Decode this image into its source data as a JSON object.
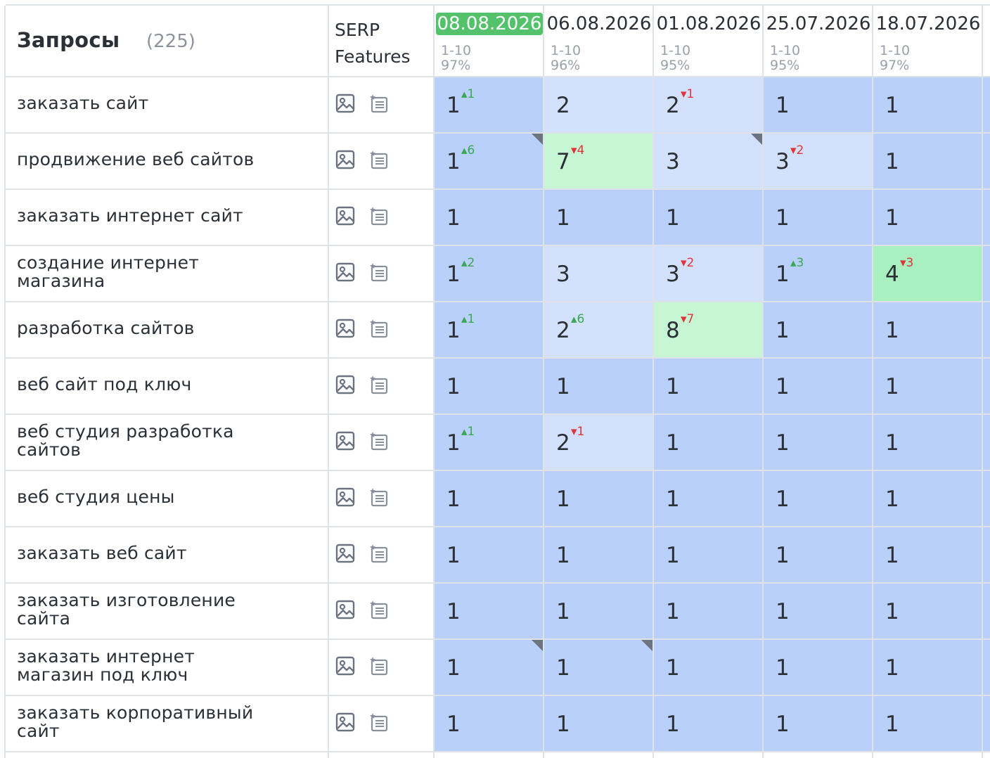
{
  "header": {
    "title": "Запросы",
    "count": "(225)",
    "serp_line1": "SERP",
    "serp_line2": "Features"
  },
  "dates": [
    {
      "date": "08.08.2026",
      "range": "1-10",
      "pct": "97%",
      "active": true
    },
    {
      "date": "06.08.2026",
      "range": "1-10",
      "pct": "96%",
      "active": false
    },
    {
      "date": "01.08.2026",
      "range": "1-10",
      "pct": "95%",
      "active": false
    },
    {
      "date": "25.07.2026",
      "range": "1-10",
      "pct": "95%",
      "active": false
    },
    {
      "date": "18.07.2026",
      "range": "1-10",
      "pct": "97%",
      "active": false
    }
  ],
  "icons": {
    "image": "image-icon",
    "snippet": "featured-snippet-icon"
  },
  "colors": {
    "pos1": "#b9d0fb",
    "pos2_3": "#d3e1fc",
    "pos4_5": "#a8f0bf",
    "pos6_10": "#c6f6d3",
    "active_date": "#53c26b",
    "up": "#3aa857",
    "down": "#e0353b"
  },
  "rows": [
    {
      "query": "заказать сайт",
      "cells": [
        {
          "v": "1",
          "chg": "1",
          "dir": "up"
        },
        {
          "v": "2"
        },
        {
          "v": "2",
          "chg": "1",
          "dir": "down"
        },
        {
          "v": "1"
        },
        {
          "v": "1"
        }
      ]
    },
    {
      "query": "продвижение веб сайтов",
      "cells": [
        {
          "v": "1",
          "chg": "6",
          "dir": "up",
          "note": true
        },
        {
          "v": "7",
          "chg": "4",
          "dir": "down"
        },
        {
          "v": "3",
          "note": true
        },
        {
          "v": "3",
          "chg": "2",
          "dir": "down"
        },
        {
          "v": "1"
        }
      ]
    },
    {
      "query": "заказать интернет сайт",
      "cells": [
        {
          "v": "1"
        },
        {
          "v": "1"
        },
        {
          "v": "1"
        },
        {
          "v": "1"
        },
        {
          "v": "1"
        }
      ]
    },
    {
      "query": "создание интернет магазина",
      "cells": [
        {
          "v": "1",
          "chg": "2",
          "dir": "up"
        },
        {
          "v": "3"
        },
        {
          "v": "3",
          "chg": "2",
          "dir": "down"
        },
        {
          "v": "1",
          "chg": "3",
          "dir": "up"
        },
        {
          "v": "4",
          "chg": "3",
          "dir": "down"
        }
      ]
    },
    {
      "query": "разработка сайтов",
      "cells": [
        {
          "v": "1",
          "chg": "1",
          "dir": "up"
        },
        {
          "v": "2",
          "chg": "6",
          "dir": "up"
        },
        {
          "v": "8",
          "chg": "7",
          "dir": "down"
        },
        {
          "v": "1"
        },
        {
          "v": "1"
        }
      ]
    },
    {
      "query": "веб сайт под ключ",
      "cells": [
        {
          "v": "1"
        },
        {
          "v": "1"
        },
        {
          "v": "1"
        },
        {
          "v": "1"
        },
        {
          "v": "1"
        }
      ]
    },
    {
      "query": "веб студия разработка сайтов",
      "cells": [
        {
          "v": "1",
          "chg": "1",
          "dir": "up"
        },
        {
          "v": "2",
          "chg": "1",
          "dir": "down"
        },
        {
          "v": "1"
        },
        {
          "v": "1"
        },
        {
          "v": "1"
        }
      ]
    },
    {
      "query": "веб студия цены",
      "cells": [
        {
          "v": "1"
        },
        {
          "v": "1"
        },
        {
          "v": "1"
        },
        {
          "v": "1"
        },
        {
          "v": "1"
        }
      ]
    },
    {
      "query": "заказать веб сайт",
      "cells": [
        {
          "v": "1"
        },
        {
          "v": "1"
        },
        {
          "v": "1"
        },
        {
          "v": "1"
        },
        {
          "v": "1"
        }
      ]
    },
    {
      "query": "заказать изготовление сайта",
      "cells": [
        {
          "v": "1"
        },
        {
          "v": "1"
        },
        {
          "v": "1"
        },
        {
          "v": "1"
        },
        {
          "v": "1"
        }
      ]
    },
    {
      "query": "заказать интернет магазин под ключ",
      "cells": [
        {
          "v": "1",
          "note": true
        },
        {
          "v": "1",
          "note": true
        },
        {
          "v": "1"
        },
        {
          "v": "1"
        },
        {
          "v": "1"
        }
      ]
    },
    {
      "query": "заказать корпоративный сайт",
      "cells": [
        {
          "v": "1"
        },
        {
          "v": "1"
        },
        {
          "v": "1"
        },
        {
          "v": "1"
        },
        {
          "v": "1"
        }
      ]
    }
  ]
}
